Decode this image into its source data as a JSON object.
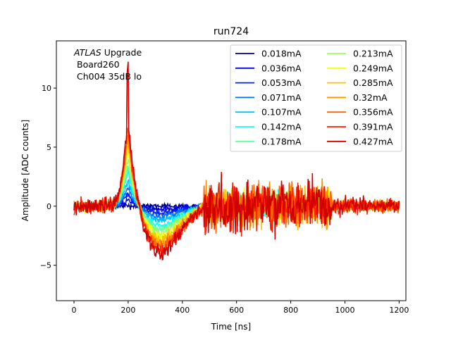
{
  "chart_data": {
    "type": "line",
    "title": "run724",
    "xlabel": "Time [ns]",
    "ylabel": "Amplitude [ADC counts]",
    "xlim": [
      -65,
      1225
    ],
    "ylim": [
      -8.0,
      14.0
    ],
    "xticks": [
      0,
      200,
      400,
      600,
      800,
      1000,
      1200
    ],
    "yticks": [
      -5,
      0,
      5,
      10
    ],
    "grid": false,
    "legend_position": "top-right",
    "legend_columns": 2,
    "annotation": {
      "line1_italic": "ATLAS",
      "line1_rest": " Upgrade",
      "line2": "Board260",
      "line3": "Ch004 35dB lo"
    },
    "series": [
      {
        "name": "0.018mA",
        "color": "#00008f",
        "scale": 0.0,
        "noise": 0.25
      },
      {
        "name": "0.036mA",
        "color": "#0000df",
        "scale": 0.07,
        "noise": 0.28
      },
      {
        "name": "0.053mA",
        "color": "#0020ff",
        "scale": 0.15,
        "noise": 0.3
      },
      {
        "name": "0.071mA",
        "color": "#0070ff",
        "scale": 0.22,
        "noise": 0.32
      },
      {
        "name": "0.107mA",
        "color": "#00c0ff",
        "scale": 0.3,
        "noise": 0.35
      },
      {
        "name": "0.142mA",
        "color": "#10ffef",
        "scale": 0.4,
        "noise": 0.38
      },
      {
        "name": "0.178mA",
        "color": "#60ff9f",
        "scale": 0.48,
        "noise": 0.4
      },
      {
        "name": "0.213mA",
        "color": "#9fff60",
        "scale": 0.56,
        "noise": 0.45
      },
      {
        "name": "0.249mA",
        "color": "#efff10",
        "scale": 0.64,
        "noise": 0.5
      },
      {
        "name": "0.285mA",
        "color": "#ffc000",
        "scale": 0.72,
        "noise": 0.55
      },
      {
        "name": "0.32mA",
        "color": "#ff9000",
        "scale": 0.8,
        "noise": 0.6
      },
      {
        "name": "0.356mA",
        "color": "#ff6000",
        "scale": 0.88,
        "noise": 0.65
      },
      {
        "name": "0.391mA",
        "color": "#ff2000",
        "scale": 0.94,
        "noise": 0.7
      },
      {
        "name": "0.427mA",
        "color": "#cf0000",
        "scale": 1.0,
        "noise": 0.8
      }
    ],
    "pulse_shape": {
      "time_ns": [
        0,
        100,
        150,
        170,
        185,
        195,
        200,
        205,
        215,
        235,
        255,
        280,
        300,
        320,
        350,
        400,
        450,
        480,
        500,
        1200
      ],
      "amplitude": [
        0,
        0,
        0.2,
        1.5,
        4.0,
        6.5,
        7.3,
        6.0,
        3.5,
        0.5,
        -1.5,
        -3.0,
        -3.8,
        -4.2,
        -3.5,
        -2.0,
        -0.8,
        0,
        0,
        0
      ],
      "noise_region_ns": [
        480,
        950
      ]
    }
  }
}
